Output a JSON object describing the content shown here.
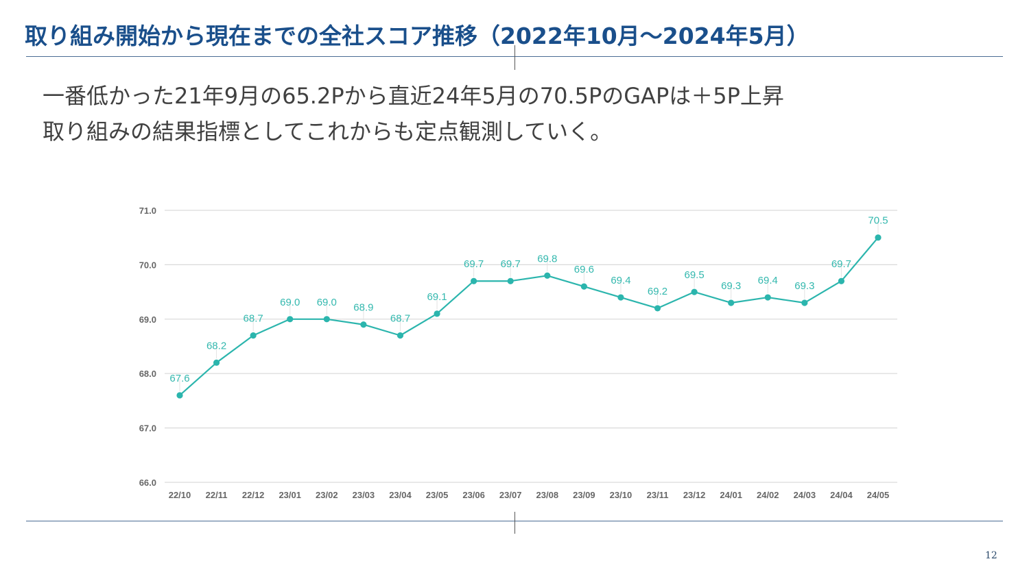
{
  "slide": {
    "title": "取り組み開始から現在までの全社スコア推移（2022年10月～2024年5月）",
    "summary_lines": [
      "一番低かった21年9月の65.2Pから直近24年5月の70.5PのGAPは＋5P上昇",
      "取り組みの結果指標としてこれからも定点観測していく。"
    ],
    "page_number": "12"
  },
  "colors": {
    "title": "#1a4f8b",
    "line": "#2bb5ad",
    "label": "#33b8ae",
    "grid": "#d9d9d9",
    "axis_text": "#666666"
  },
  "chart_data": {
    "type": "line",
    "title": "",
    "xlabel": "",
    "ylabel": "",
    "ylim": [
      66.0,
      71.0
    ],
    "yticks": [
      "66.0",
      "67.0",
      "68.0",
      "69.0",
      "70.0",
      "71.0"
    ],
    "grid": true,
    "legend": "none",
    "categories": [
      "22/10",
      "22/11",
      "22/12",
      "23/01",
      "23/02",
      "23/03",
      "23/04",
      "23/05",
      "23/06",
      "23/07",
      "23/08",
      "23/09",
      "23/10",
      "23/11",
      "23/12",
      "24/01",
      "24/02",
      "24/03",
      "24/04",
      "24/05"
    ],
    "series": [
      {
        "name": "全社スコア",
        "values": [
          67.6,
          68.2,
          68.7,
          69.0,
          69.0,
          68.9,
          68.7,
          69.1,
          69.7,
          69.7,
          69.8,
          69.6,
          69.4,
          69.2,
          69.5,
          69.3,
          69.4,
          69.3,
          69.7,
          70.5
        ],
        "labels": [
          "67.6",
          "68.2",
          "68.7",
          "69.0",
          "69.0",
          "68.9",
          "68.7",
          "69.1",
          "69.7",
          "69.7",
          "69.8",
          "69.6",
          "69.4",
          "69.2",
          "69.5",
          "69.3",
          "69.4",
          "69.3",
          "69.7",
          "70.5"
        ]
      }
    ]
  }
}
